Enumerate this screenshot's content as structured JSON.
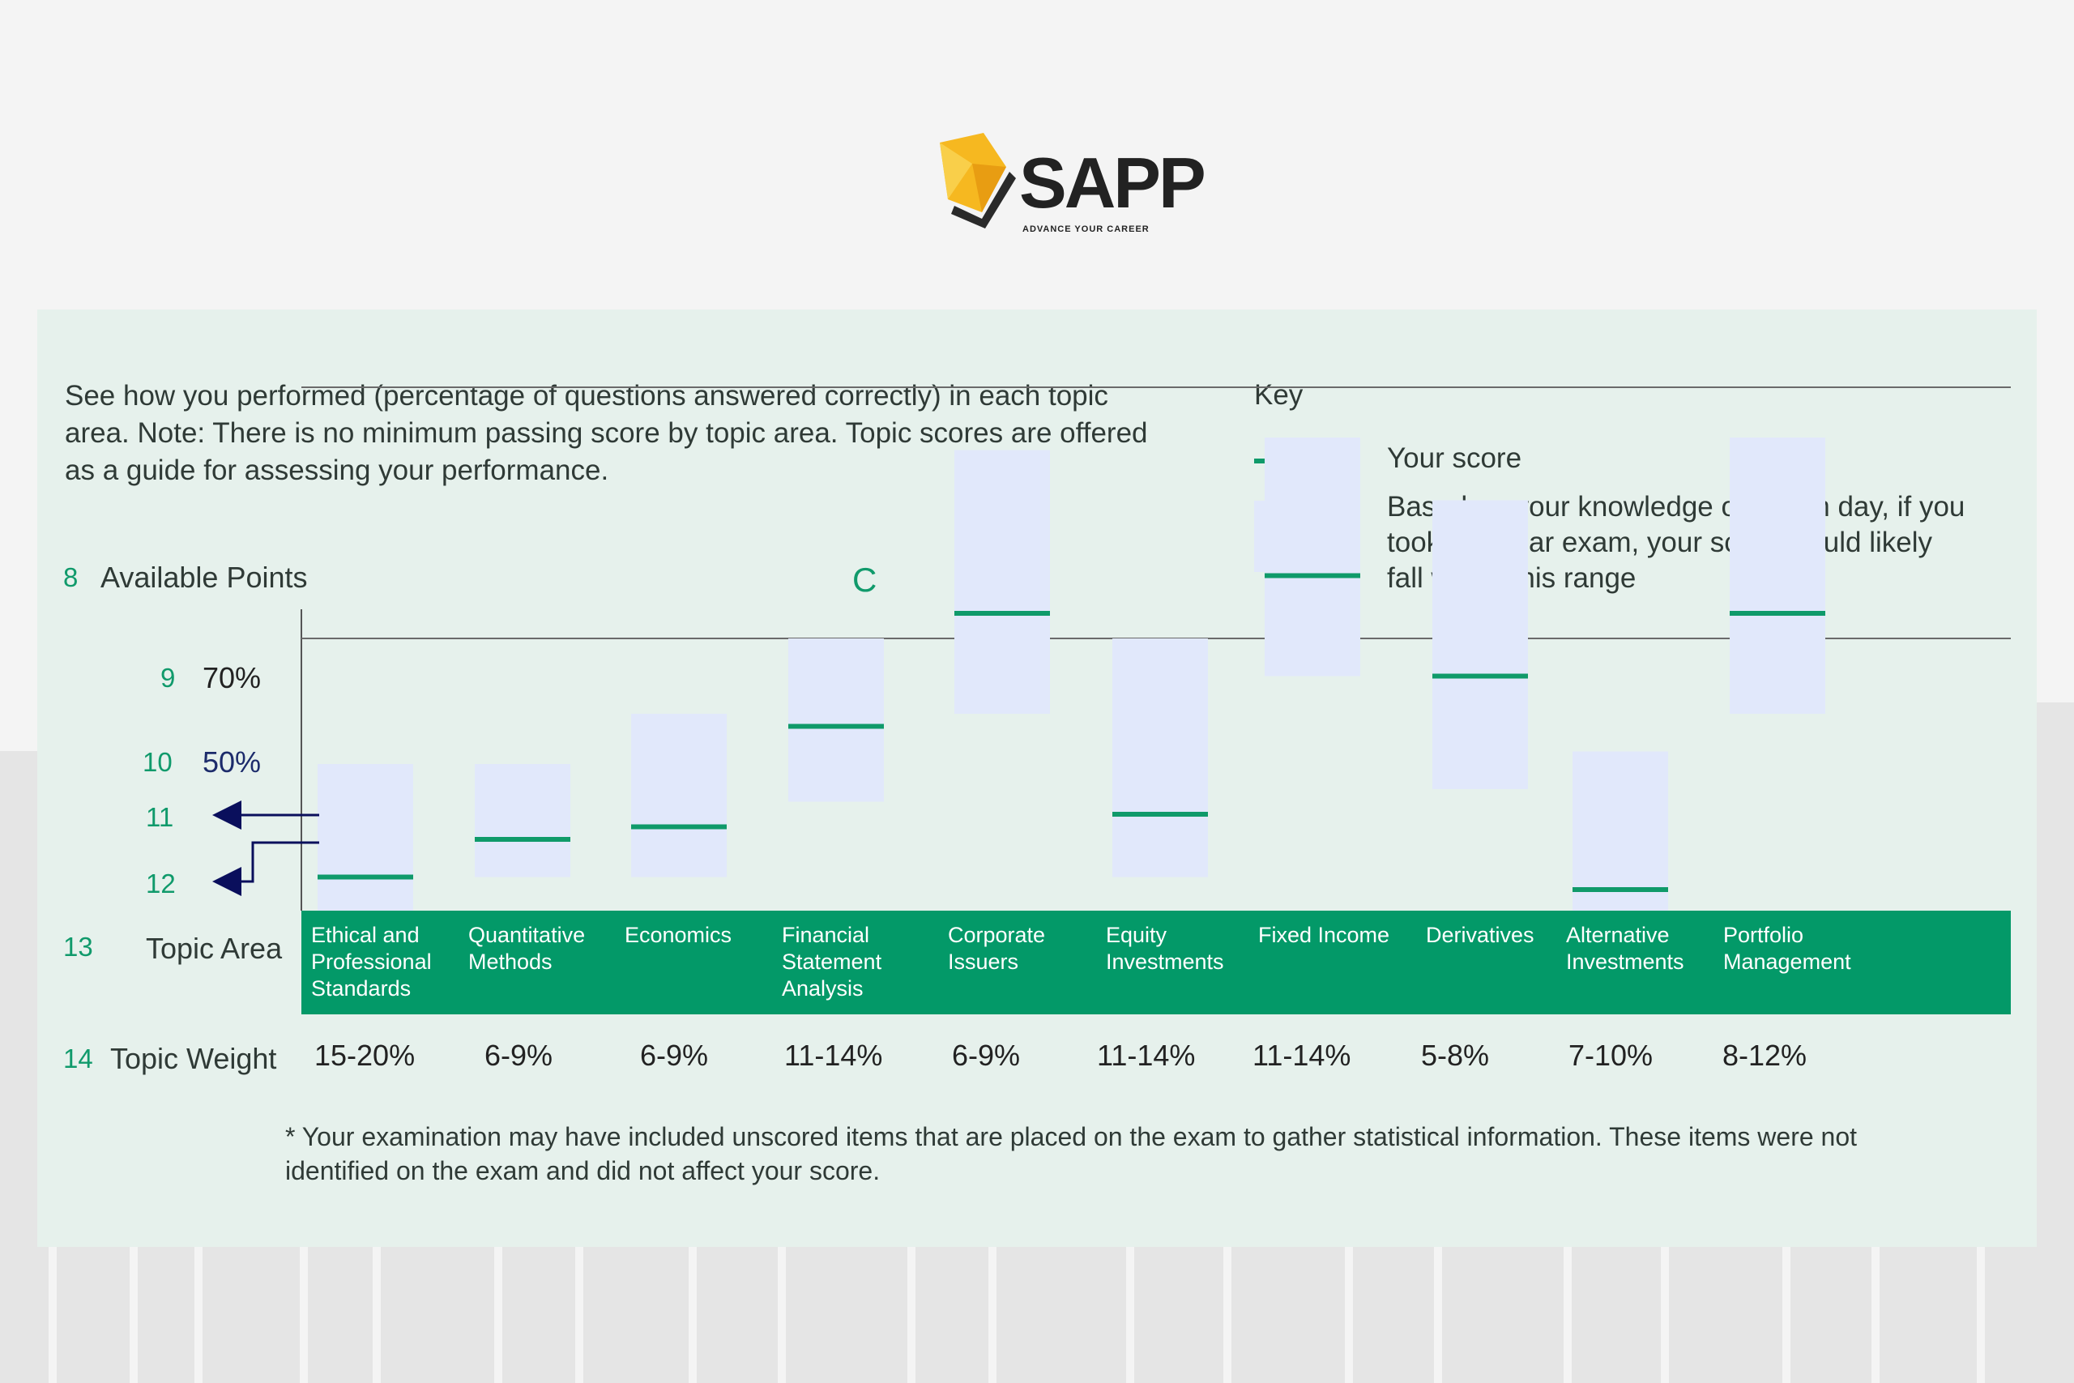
{
  "brand": {
    "name": "SAPP",
    "tagline": "ADVANCE YOUR CAREER"
  },
  "intro": "See how you performed (percentage of questions answered correctly) in each topic area. Note: There is no minimum passing score by topic area. Topic scores are offered as a guide for assessing your performance.",
  "key": {
    "title": "Key",
    "score_label": "Your score",
    "range_label": "Based on your knowledge on exam day, if you took a similar exam, your score would likely fall within this range"
  },
  "annotations": {
    "n8": "8",
    "n9": "9",
    "n10": "10",
    "n11": "11",
    "n12": "12",
    "n13": "13",
    "n14": "14",
    "c": "C",
    "available_points": "Available Points",
    "topic_area": "Topic Area",
    "topic_weight": "Topic Weight"
  },
  "colors": {
    "score_line": "#0f9a6a",
    "range_box": "#e1e8fb",
    "band": "#039968",
    "panel": "#e6f1ec",
    "arrow": "#0a0f5c"
  },
  "chart_data": {
    "type": "range-marker",
    "yunit": "%",
    "ylim": [
      0,
      85
    ],
    "reference_lines": [
      {
        "value": 70,
        "label": "70%"
      },
      {
        "value": 50,
        "label": "50%"
      }
    ],
    "categories": [
      "Ethical and Professional Standards",
      "Quantitative Methods",
      "Economics",
      "Financial Statement Analysis",
      "Corporate Issuers",
      "Equity Investments",
      "Fixed Income",
      "Derivatives",
      "Alternative Investments",
      "Portfolio Management"
    ],
    "category_lines": [
      [
        "Ethical and",
        "Professional",
        "Standards"
      ],
      [
        "Quantitative",
        "Methods"
      ],
      [
        "Economics"
      ],
      [
        "Financial",
        "Statement",
        "Analysis"
      ],
      [
        "Corporate",
        "Issuers"
      ],
      [
        "Equity",
        "Investments"
      ],
      [
        "Fixed Income"
      ],
      [
        "Derivatives"
      ],
      [
        "Alternative",
        "Investments"
      ],
      [
        "Portfolio",
        "Management"
      ]
    ],
    "series": [
      {
        "name": "Your score",
        "values": [
          31,
          34,
          35,
          43,
          52,
          36,
          55,
          47,
          30,
          52
        ]
      },
      {
        "name": "Range low",
        "values": [
          28,
          31,
          31,
          37,
          44,
          31,
          47,
          38,
          26,
          44
        ]
      },
      {
        "name": "Range high",
        "values": [
          40,
          40,
          44,
          50,
          65,
          50,
          66,
          61,
          41,
          66
        ]
      }
    ],
    "topic_weights": [
      "15-20%",
      "6-9%",
      "6-9%",
      "11-14%",
      "6-9%",
      "11-14%",
      "11-14%",
      "5-8%",
      "7-10%",
      "8-12%"
    ]
  },
  "footnote": "* Your examination may have included unscored items that are placed on the exam to gather statistical information. These items were not identified on the exam and did not affect your score."
}
